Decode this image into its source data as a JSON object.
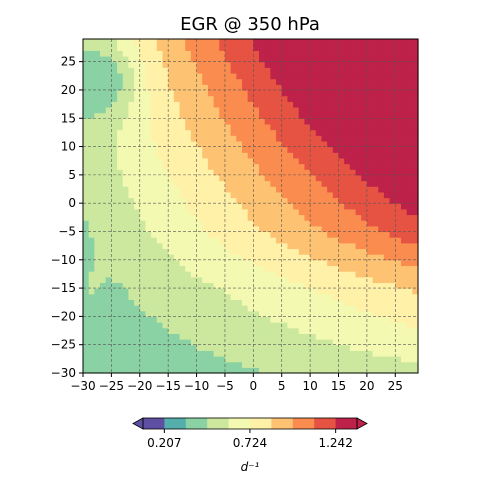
{
  "chart_data": {
    "type": "heatmap",
    "title": "EGR @ 350 hPa",
    "x_range": [
      -30,
      29
    ],
    "y_range": [
      -30,
      29
    ],
    "x_ticks": [
      -30,
      -25,
      -20,
      -15,
      -10,
      -5,
      0,
      5,
      10,
      15,
      20,
      25
    ],
    "y_ticks": [
      -30,
      -25,
      -20,
      -15,
      -10,
      -5,
      0,
      5,
      10,
      15,
      20,
      25
    ],
    "grid": true,
    "colormap": "Spectral_r",
    "levels": [
      0.078,
      0.207,
      0.337,
      0.466,
      0.595,
      0.724,
      0.853,
      0.983,
      1.112,
      1.242,
      1.371
    ],
    "level_colors": [
      "#5e4fa2",
      "#54aeac",
      "#8ad1a4",
      "#cbe89e",
      "#f3f9b0",
      "#fff1a8",
      "#fdc372",
      "#fa8c4f",
      "#e65343",
      "#be2149"
    ],
    "colorbar": {
      "position": "bottom",
      "extend": "both",
      "ticks": [
        "0.207",
        "0.724",
        "1.242"
      ],
      "label": "d⁻¹"
    },
    "field_description": "Low values (~0.2–0.3) in upper-left corner; moderate (~0.4–0.6) over the left and lower half; values rise toward the upper-right, reaching ~1.2–1.3 at the top-right corner."
  }
}
